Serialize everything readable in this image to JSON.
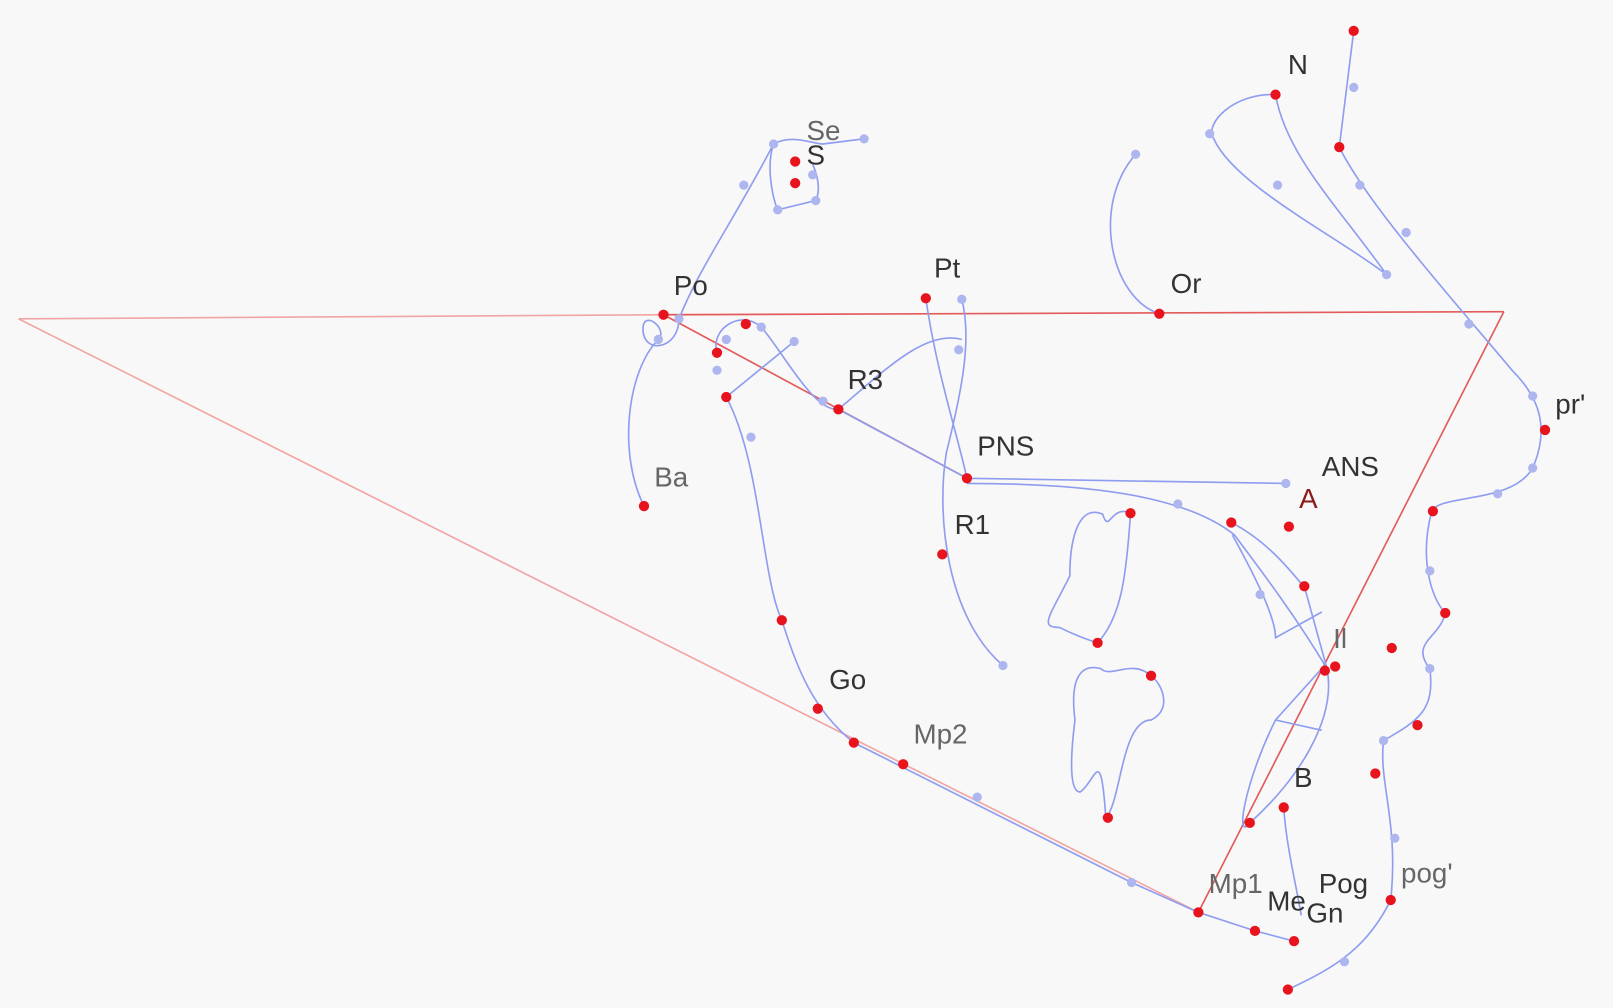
{
  "landmarks": [
    {
      "label": "N"
    },
    {
      "label": "Se"
    },
    {
      "label": "S"
    },
    {
      "label": "Po"
    },
    {
      "label": "Pt"
    },
    {
      "label": "Or"
    },
    {
      "label": "R3"
    },
    {
      "label": "PNS"
    },
    {
      "label": "ANS"
    },
    {
      "label": "A"
    },
    {
      "label": "pr'"
    },
    {
      "label": "Ba"
    },
    {
      "label": "R1"
    },
    {
      "label": "Il"
    },
    {
      "label": "Go"
    },
    {
      "label": "Mp2"
    },
    {
      "label": "B"
    },
    {
      "label": "Mp1"
    },
    {
      "label": "Me"
    },
    {
      "label": "Gn"
    },
    {
      "label": "Pog"
    },
    {
      "label": "pog'"
    }
  ]
}
